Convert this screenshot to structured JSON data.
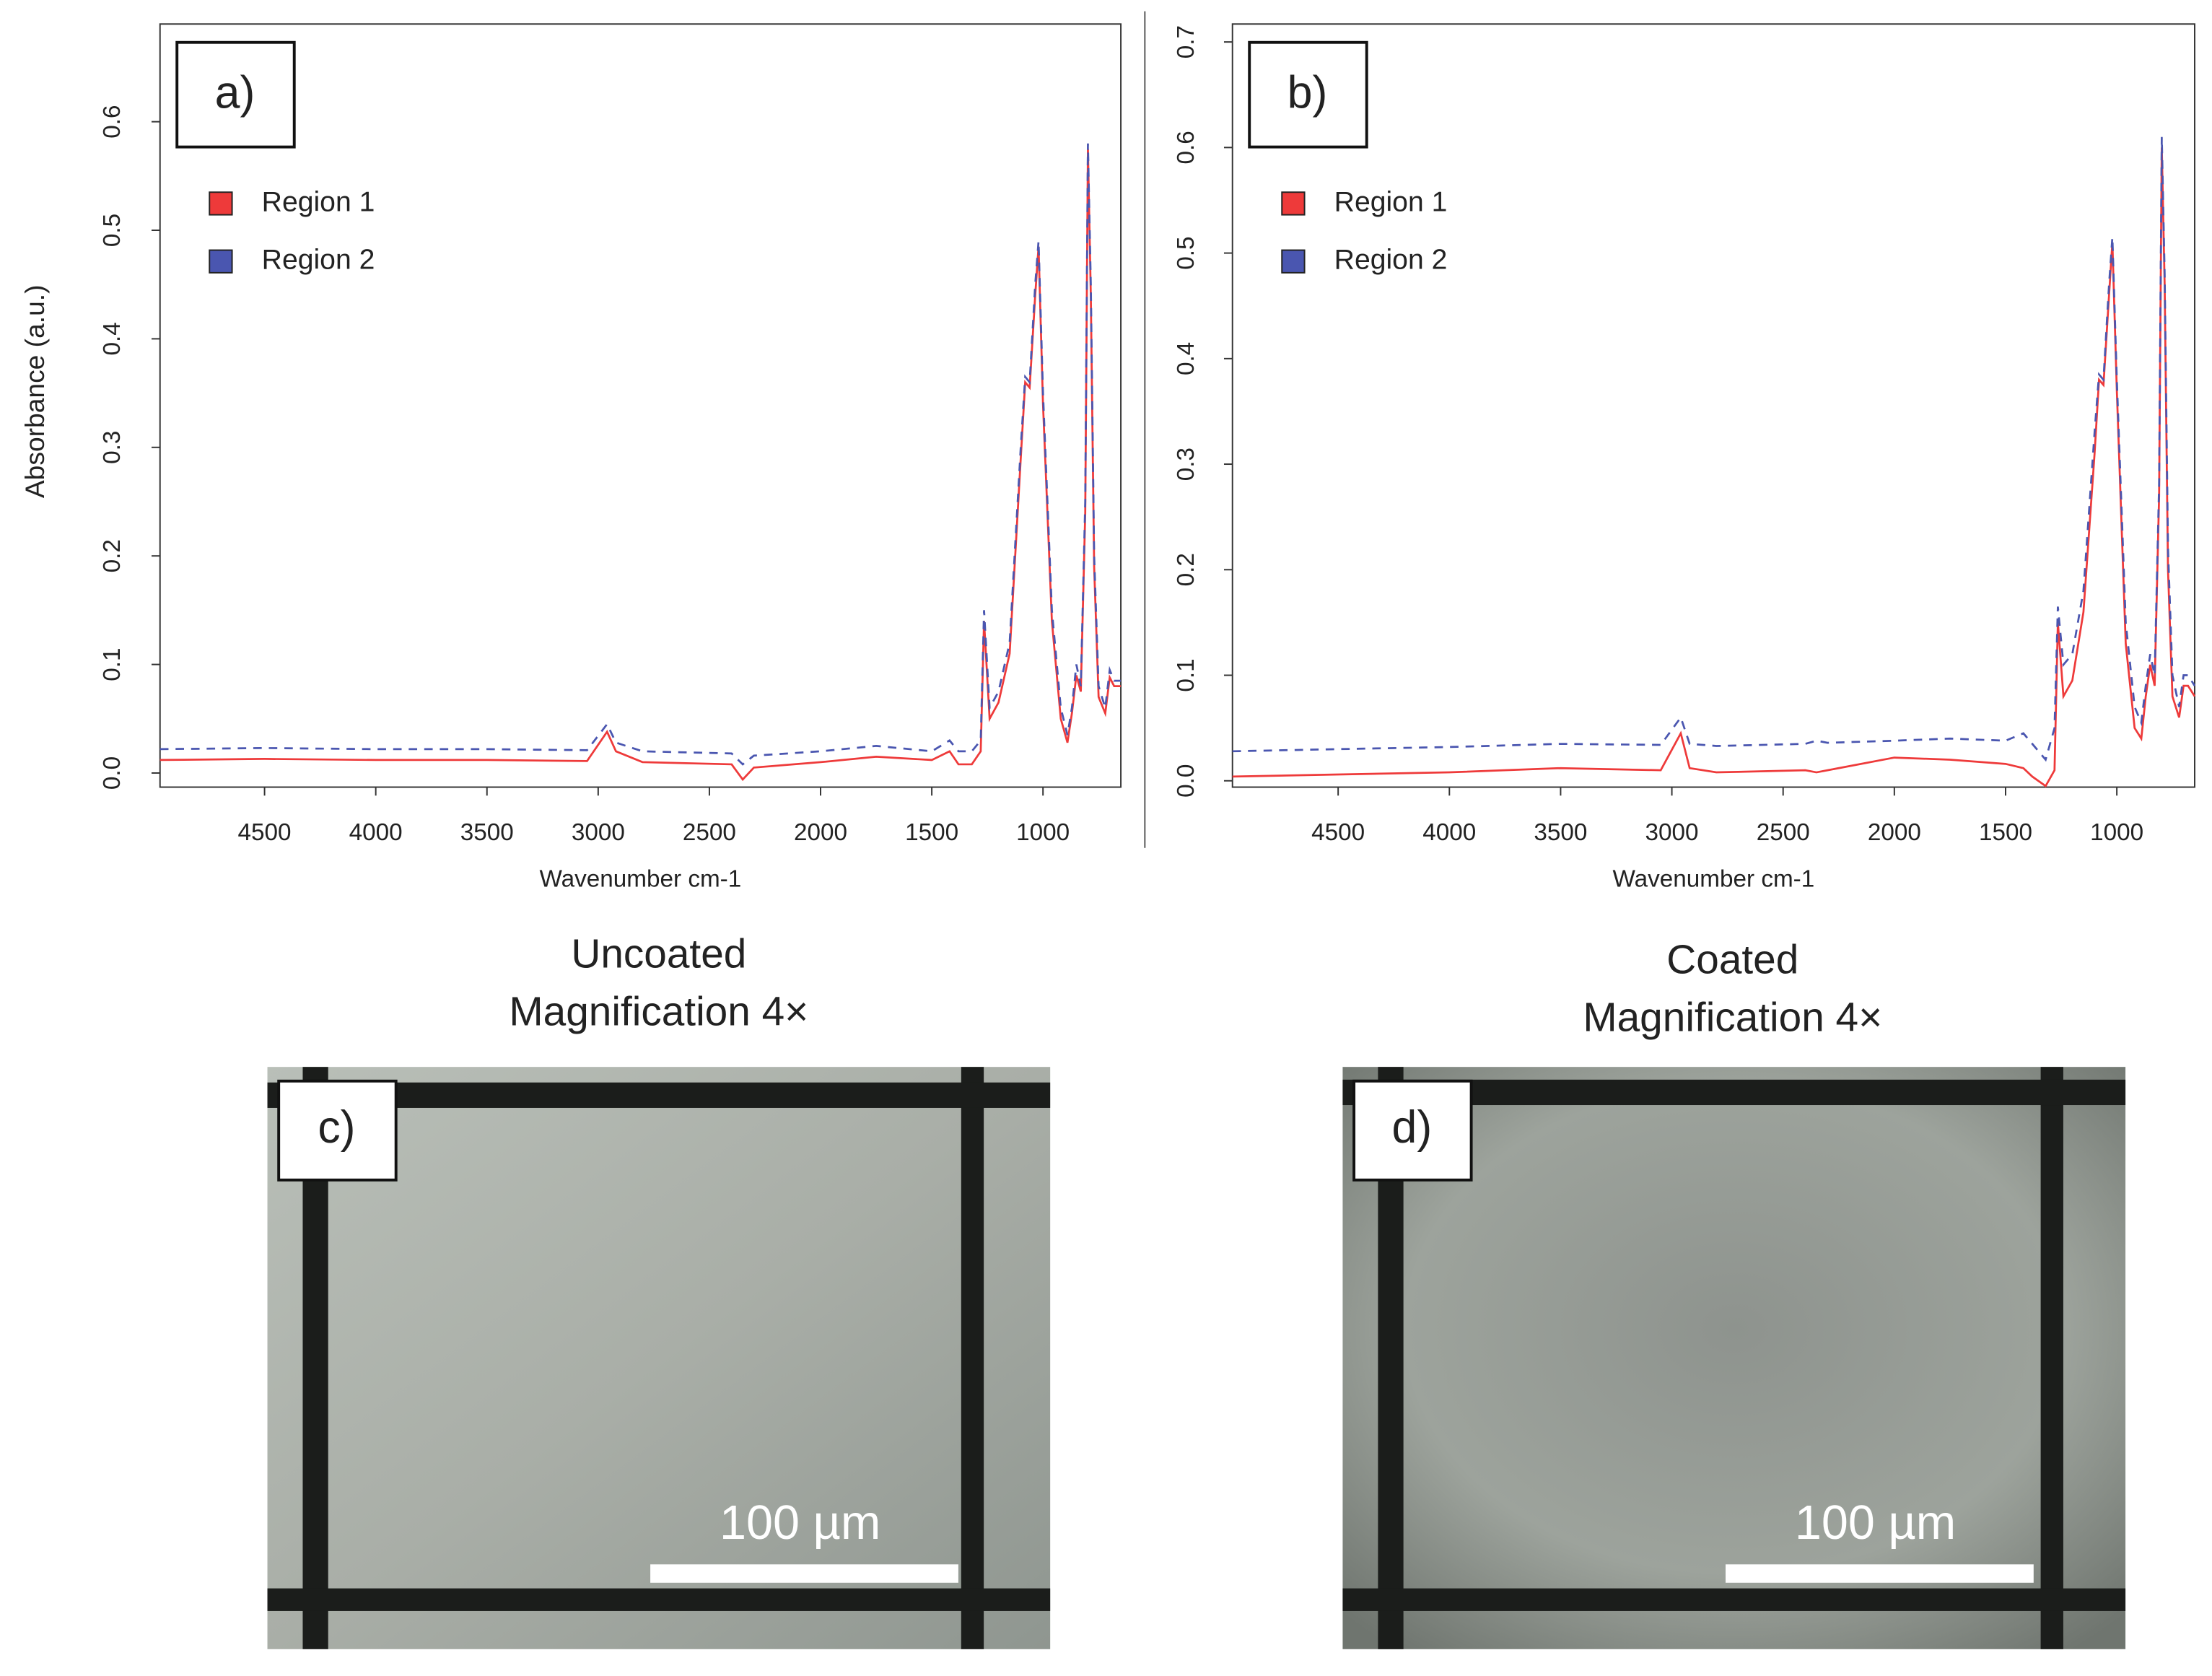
{
  "chart_data": [
    {
      "type": "line",
      "panel_label": "a)",
      "x_label": "Wavenumber cm-1",
      "y_label": "Absorbance (a.u.)",
      "x": [
        4970,
        4500,
        4000,
        3500,
        3050,
        2960,
        2920,
        2800,
        2400,
        2350,
        2300,
        2000,
        1750,
        1500,
        1420,
        1380,
        1320,
        1280,
        1265,
        1240,
        1200,
        1150,
        1100,
        1080,
        1060,
        1035,
        1020,
        1000,
        960,
        920,
        890,
        870,
        850,
        830,
        810,
        798,
        785,
        770,
        750,
        720,
        700,
        680,
        650
      ],
      "series": [
        {
          "name": "Region 1",
          "color": "#ee3a3a",
          "values": [
            0.012,
            0.013,
            0.012,
            0.012,
            0.011,
            0.038,
            0.02,
            0.01,
            0.008,
            -0.006,
            0.005,
            0.01,
            0.015,
            0.012,
            0.02,
            0.008,
            0.008,
            0.02,
            0.14,
            0.05,
            0.065,
            0.11,
            0.29,
            0.36,
            0.355,
            0.44,
            0.485,
            0.34,
            0.14,
            0.05,
            0.028,
            0.055,
            0.09,
            0.075,
            0.24,
            0.575,
            0.44,
            0.19,
            0.07,
            0.055,
            0.088,
            0.08,
            0.08
          ]
        },
        {
          "name": "Region 2",
          "color": "#4a56b0",
          "values": [
            0.022,
            0.023,
            0.022,
            0.022,
            0.021,
            0.045,
            0.028,
            0.02,
            0.018,
            0.008,
            0.016,
            0.02,
            0.025,
            0.02,
            0.03,
            0.02,
            0.02,
            0.03,
            0.15,
            0.06,
            0.075,
            0.12,
            0.3,
            0.365,
            0.36,
            0.45,
            0.49,
            0.35,
            0.15,
            0.06,
            0.035,
            0.06,
            0.1,
            0.08,
            0.25,
            0.58,
            0.45,
            0.2,
            0.08,
            0.06,
            0.095,
            0.085,
            0.085
          ]
        }
      ],
      "xlim": [
        4970,
        650
      ],
      "xticks": [
        4500,
        4000,
        3500,
        3000,
        2500,
        2000,
        1500,
        1000
      ],
      "ylim": [
        -0.013,
        0.69
      ],
      "yticks": [
        {
          "value": 0,
          "label": "0.0"
        },
        0.1,
        0.2,
        0.3,
        0.4,
        0.5,
        0.6
      ]
    },
    {
      "type": "line",
      "panel_label": "b)",
      "x_label": "Wavenumber cm-1",
      "x": [
        4975,
        4500,
        4000,
        3500,
        3050,
        2960,
        2920,
        2800,
        2400,
        2350,
        2300,
        2000,
        1750,
        1500,
        1420,
        1380,
        1320,
        1280,
        1265,
        1240,
        1200,
        1150,
        1100,
        1080,
        1060,
        1035,
        1020,
        1000,
        960,
        920,
        890,
        870,
        850,
        830,
        810,
        798,
        785,
        770,
        750,
        720,
        700,
        680,
        650
      ],
      "series": [
        {
          "name": "Region 1",
          "color": "#ee3a3a",
          "values": [
            0.004,
            0.006,
            0.008,
            0.012,
            0.01,
            0.045,
            0.012,
            0.008,
            0.01,
            0.008,
            0.01,
            0.022,
            0.02,
            0.016,
            0.012,
            0.004,
            -0.005,
            0.01,
            0.15,
            0.08,
            0.095,
            0.16,
            0.31,
            0.38,
            0.375,
            0.46,
            0.51,
            0.37,
            0.13,
            0.05,
            0.04,
            0.08,
            0.11,
            0.09,
            0.27,
            0.6,
            0.47,
            0.2,
            0.08,
            0.06,
            0.09,
            0.09,
            0.08
          ]
        },
        {
          "name": "Region 2",
          "color": "#4a56b0",
          "values": [
            0.028,
            0.03,
            0.032,
            0.035,
            0.034,
            0.06,
            0.035,
            0.033,
            0.035,
            0.038,
            0.036,
            0.038,
            0.04,
            0.038,
            0.045,
            0.035,
            0.02,
            0.05,
            0.165,
            0.11,
            0.12,
            0.18,
            0.33,
            0.385,
            0.38,
            0.47,
            0.515,
            0.38,
            0.15,
            0.07,
            0.055,
            0.09,
            0.12,
            0.1,
            0.28,
            0.61,
            0.48,
            0.22,
            0.1,
            0.07,
            0.1,
            0.1,
            0.09
          ]
        }
      ],
      "xlim": [
        4975,
        650
      ],
      "xticks": [
        4500,
        4000,
        3500,
        3000,
        2500,
        2000,
        1500,
        1000
      ],
      "ylim": [
        -0.006,
        0.717
      ],
      "yticks": [
        {
          "value": 0,
          "label": "0.0"
        },
        0.1,
        0.2,
        0.3,
        0.4,
        0.5,
        0.6,
        0.7
      ]
    }
  ],
  "images": [
    {
      "title": "Uncoated",
      "subtitle": "Magnification 4×",
      "label": "c)",
      "scale_bar": "100 µm"
    },
    {
      "title": "Coated",
      "subtitle": "Magnification 4×",
      "label": "d)",
      "scale_bar": "100 µm"
    }
  ]
}
